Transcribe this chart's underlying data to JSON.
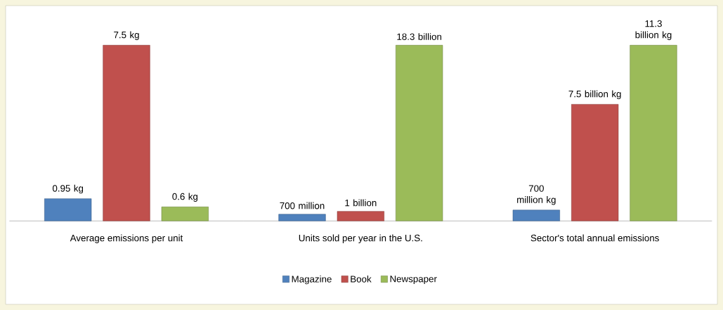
{
  "chart_data": [
    {
      "type": "bar",
      "xlabel": "Average emissions per unit",
      "categories": [
        null
      ],
      "series": [
        {
          "color": "#4f81bd",
          "values": [
            0.95
          ],
          "value_labels": [
            "0.95 kg"
          ]
        },
        {
          "color": "#c0504d",
          "values": [
            7.5
          ],
          "value_labels": [
            "7.5 kg"
          ]
        },
        {
          "color": "#9bbb59",
          "values": [
            0.6
          ],
          "value_labels": [
            "0.6 kg"
          ]
        }
      ]
    },
    {
      "type": "bar",
      "xlabel": "Units sold per year in the U.S.",
      "categories": [
        null
      ],
      "legend": "bottom",
      "series": [
        {
          "name": "Magazine",
          "color": "#4f81bd",
          "values": [
            700000000
          ],
          "value_labels": [
            "700 million"
          ]
        },
        {
          "name": "Book",
          "color": "#c0504d",
          "values": [
            1000000000
          ],
          "value_labels": [
            "1 billion"
          ]
        },
        {
          "name": "Newspaper",
          "color": "#9bbb59",
          "values": [
            18300000000
          ],
          "value_labels": [
            "18.3 billion"
          ]
        }
      ]
    },
    {
      "type": "bar",
      "xlabel": "Sector's total annual emissions",
      "categories": [
        null
      ],
      "series": [
        {
          "color": "#4f81bd",
          "values": [
            700000000
          ],
          "value_labels": [
            "700 million kg"
          ]
        },
        {
          "color": "#c0504d",
          "values": [
            7500000000
          ],
          "value_labels": [
            "7.5 billion kg"
          ]
        },
        {
          "color": "#9bbb59",
          "values": [
            11300000000
          ],
          "value_labels": [
            "11.3 billion kg"
          ]
        }
      ]
    }
  ]
}
